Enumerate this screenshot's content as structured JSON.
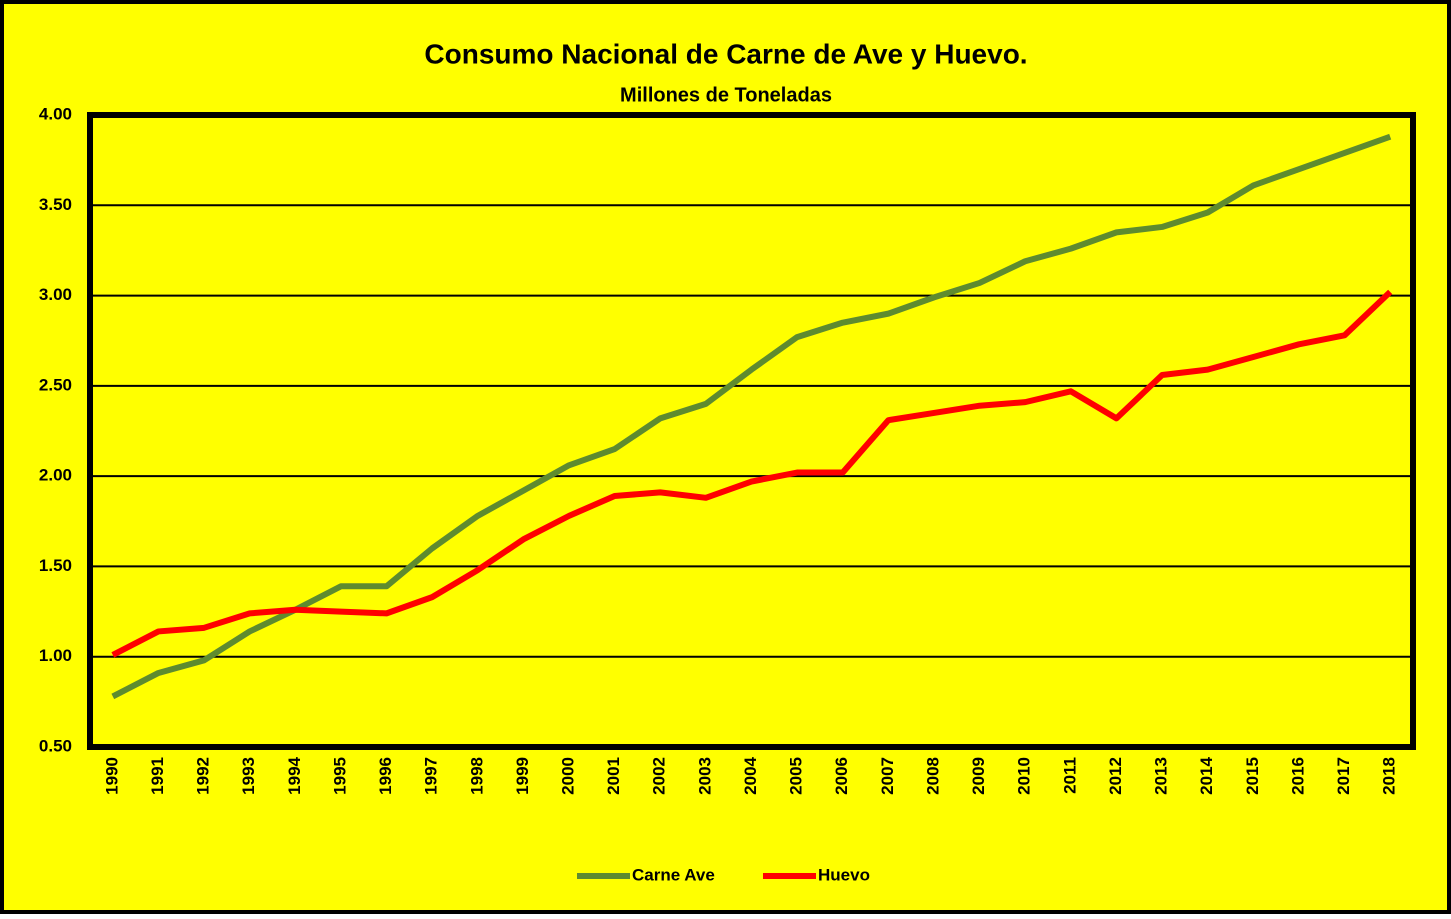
{
  "chart_data": {
    "type": "line",
    "title": "Consumo Nacional de Carne de Ave y Huevo.",
    "subtitle": "Millones de Toneladas",
    "categories": [
      "1990",
      "1991",
      "1992",
      "1993",
      "1994",
      "1995",
      "1996",
      "1997",
      "1998",
      "1999",
      "2000",
      "2001",
      "2002",
      "2003",
      "2004",
      "2005",
      "2006",
      "2007",
      "2008",
      "2009",
      "2010",
      "2011",
      "2012",
      "2013",
      "2014",
      "2015",
      "2016",
      "2017",
      "2018"
    ],
    "series": [
      {
        "name": "Carne Ave",
        "color": "#5e8b2f",
        "values": [
          0.78,
          0.91,
          0.98,
          1.14,
          1.26,
          1.39,
          1.39,
          1.6,
          1.78,
          1.92,
          2.06,
          2.15,
          2.32,
          2.4,
          2.59,
          2.77,
          2.85,
          2.9,
          2.99,
          3.07,
          3.19,
          3.26,
          3.35,
          3.38,
          3.46,
          3.61,
          3.7,
          3.79,
          3.88
        ]
      },
      {
        "name": "Huevo",
        "color": "#ff0000",
        "values": [
          1.01,
          1.14,
          1.16,
          1.24,
          1.26,
          1.25,
          1.24,
          1.33,
          1.48,
          1.65,
          1.78,
          1.89,
          1.91,
          1.88,
          1.97,
          2.02,
          2.02,
          2.31,
          2.35,
          2.39,
          2.41,
          2.47,
          2.32,
          2.56,
          2.59,
          2.66,
          2.73,
          2.78,
          3.02
        ]
      }
    ],
    "ylim": [
      0.5,
      4
    ],
    "yticks": [
      {
        "value": 0.5,
        "label": "0.50"
      },
      {
        "value": 1,
        "label": "1.00"
      },
      {
        "value": 1.5,
        "label": "1.50"
      },
      {
        "value": 2,
        "label": "2.00"
      },
      {
        "value": 2.5,
        "label": "2.50"
      },
      {
        "value": 3,
        "label": "3.00"
      },
      {
        "value": 3.5,
        "label": "3.50"
      },
      {
        "value": 4,
        "label": "4.00"
      }
    ],
    "grid": true,
    "legend": "bottom",
    "background": "#ffff00"
  }
}
